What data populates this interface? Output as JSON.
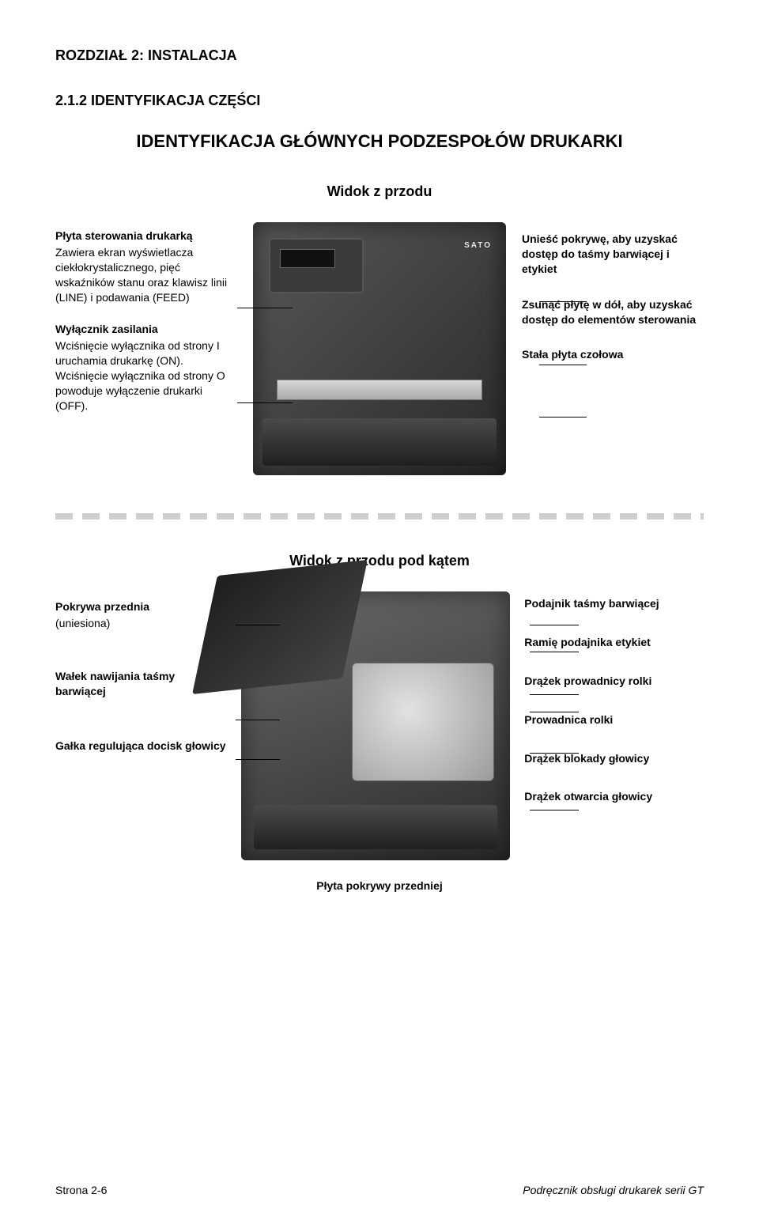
{
  "chapter": "ROZDZIAŁ 2: INSTALACJA",
  "section": "2.1.2 IDENTYFIKACJA CZĘŚCI",
  "subsection": "IDENTYFIKACJA GŁÓWNYCH PODZESPOŁÓW DRUKARKI",
  "view1": {
    "title": "Widok z przodu",
    "left": [
      {
        "title": "Płyta sterowania drukarką",
        "desc": "Zawiera ekran wyświetlacza ciekłokrystalicznego, pięć wskaźników stanu oraz klawisz linii (LINE) i podawania (FEED)"
      },
      {
        "title": "Wyłącznik zasilania",
        "desc": "Wciśnięcie wyłącznika od strony I uruchamia drukarkę (ON). Wciśnięcie wyłącznika od strony O powoduje wyłączenie drukarki (OFF)."
      }
    ],
    "right": [
      {
        "title": "Unieść pokrywę, aby uzyskać dostęp do taśmy barwiącej i etykiet",
        "desc": ""
      },
      {
        "title": "Zsunąć płytę w dół, aby uzyskać dostęp do elementów sterowania",
        "desc": ""
      },
      {
        "title": "Stała płyta czołowa",
        "desc": ""
      }
    ],
    "brand": "SATO"
  },
  "view2": {
    "title": "Widok z przodu pod kątem",
    "left": [
      {
        "title": "Pokrywa przednia",
        "desc": "(uniesiona)"
      },
      {
        "title": "Wałek nawijania taśmy barwiącej",
        "desc": ""
      },
      {
        "title": "Gałka regulująca docisk głowicy",
        "desc": ""
      }
    ],
    "right": [
      {
        "title": "Podajnik taśmy barwiącej",
        "desc": ""
      },
      {
        "title": "Ramię podajnika etykiet",
        "desc": ""
      },
      {
        "title": "Drążek prowadnicy rolki",
        "desc": ""
      },
      {
        "title": "Prowadnica rolki",
        "desc": ""
      },
      {
        "title": "Drążek blokady głowicy",
        "desc": ""
      },
      {
        "title": "Drążek otwarcia głowicy",
        "desc": ""
      }
    ],
    "bottom": "Płyta pokrywy przedniej"
  },
  "footer": {
    "left": "Strona 2-6",
    "right": "Podręcznik obsługi drukarek serii GT"
  },
  "colors": {
    "text": "#000000",
    "background": "#ffffff",
    "separator": "#cfcfcf",
    "device_dark": "#2a2a2a",
    "device_light": "#585858"
  }
}
